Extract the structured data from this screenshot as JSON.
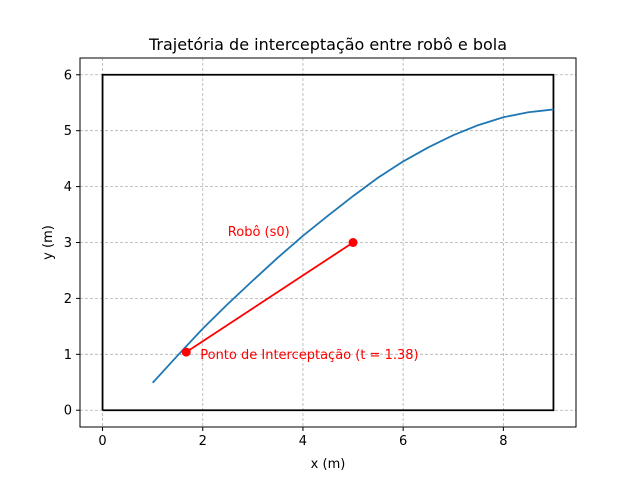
{
  "chart_data": {
    "type": "line",
    "title": "Trajetória de interceptação entre robô e bola",
    "xlabel": "x (m)",
    "ylabel": "y (m)",
    "xlim": [
      -0.45,
      9.45
    ],
    "ylim": [
      -0.3,
      6.3
    ],
    "xticks": [
      "0",
      "2",
      "4",
      "6",
      "8"
    ],
    "xtick_values": [
      0,
      2,
      4,
      6,
      8
    ],
    "yticks": [
      "0",
      "1",
      "2",
      "3",
      "4",
      "5",
      "6"
    ],
    "ytick_values": [
      0,
      1,
      2,
      3,
      4,
      5,
      6
    ],
    "grid": true,
    "grid_style": "dashed",
    "colors": {
      "ball": "#1f77b4",
      "robot": "#ff0000",
      "field": "#000000",
      "grid": "#b0b0b0"
    },
    "field": {
      "x": [
        0,
        9,
        9,
        0,
        0
      ],
      "y": [
        0,
        0,
        6,
        6,
        0
      ]
    },
    "series": [
      {
        "x": [
          1.0,
          1.5,
          2.0,
          2.5,
          3.0,
          3.5,
          4.0,
          4.5,
          5.0,
          5.5,
          6.0,
          6.5,
          7.0,
          7.5,
          8.0,
          8.5,
          9.0
        ],
        "y": [
          0.49,
          0.98,
          1.46,
          1.9,
          2.32,
          2.73,
          3.12,
          3.48,
          3.83,
          4.16,
          4.45,
          4.7,
          4.92,
          5.1,
          5.24,
          5.33,
          5.38
        ]
      },
      {
        "x": [
          5.0,
          1.67
        ],
        "y": [
          3.0,
          1.04
        ]
      }
    ],
    "annotations": [
      {
        "text": "Robô (s0)",
        "x": 2.5,
        "y": 3.2
      },
      {
        "text": "Ponto de Interceptação (t = 1.38)",
        "x": 1.95,
        "y": 1.0
      }
    ]
  }
}
